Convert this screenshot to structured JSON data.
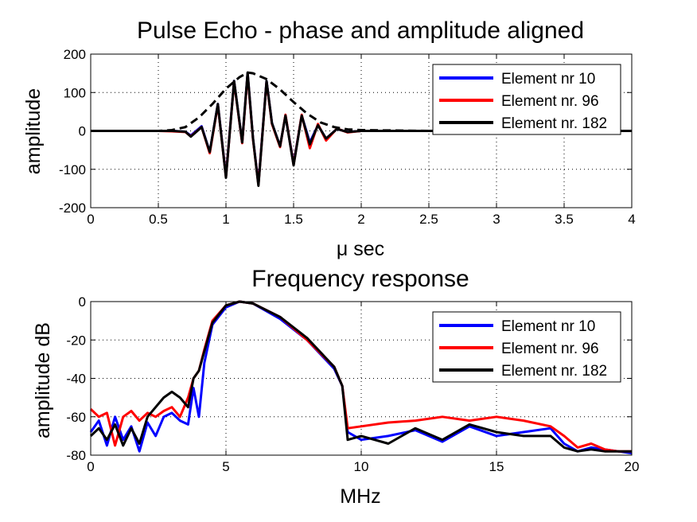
{
  "chart_data": [
    {
      "type": "line",
      "title": "Pulse Echo - phase and amplitude aligned",
      "xlabel_symbol": "μ",
      "xlabel_rest": " sec",
      "ylabel": "amplitude",
      "xlim": [
        0,
        4
      ],
      "ylim": [
        -200,
        200
      ],
      "xticks": [
        0,
        0.5,
        1,
        1.5,
        2,
        2.5,
        3,
        3.5,
        4
      ],
      "xtick_labels": [
        "0",
        "0.5",
        "1",
        "1.5",
        "2",
        "2.5",
        "3",
        "3.5",
        "4"
      ],
      "yticks": [
        -200,
        -100,
        0,
        100,
        200
      ],
      "ytick_labels": [
        "-200",
        "-100",
        "0",
        "100",
        "200"
      ],
      "grid": true,
      "legend_position": "top-right",
      "series": [
        {
          "name": "Element nr 10",
          "color": "#0000ff",
          "x": [
            0,
            0.5,
            0.6,
            0.7,
            0.74,
            0.82,
            0.88,
            0.94,
            1.0,
            1.06,
            1.12,
            1.16,
            1.2,
            1.24,
            1.3,
            1.34,
            1.4,
            1.44,
            1.5,
            1.56,
            1.62,
            1.68,
            1.74,
            1.82,
            1.9,
            2.0,
            2.5,
            3.0,
            4.0
          ],
          "y": [
            0,
            0,
            0,
            -2,
            -12,
            12,
            -55,
            70,
            -118,
            130,
            -30,
            150,
            -20,
            -138,
            130,
            20,
            -40,
            40,
            -85,
            40,
            -30,
            15,
            -20,
            5,
            -3,
            0,
            0,
            0,
            0
          ]
        },
        {
          "name": "Element nr. 96",
          "color": "#ff0000",
          "x": [
            0,
            0.5,
            0.6,
            0.7,
            0.74,
            0.82,
            0.88,
            0.94,
            1.0,
            1.06,
            1.12,
            1.16,
            1.2,
            1.24,
            1.3,
            1.34,
            1.4,
            1.44,
            1.5,
            1.56,
            1.62,
            1.68,
            1.74,
            1.82,
            1.9,
            2.0,
            2.5,
            3.0,
            4.0
          ],
          "y": [
            0,
            0,
            -1,
            -3,
            -14,
            10,
            -58,
            68,
            -120,
            128,
            -32,
            148,
            -22,
            -140,
            128,
            18,
            -42,
            42,
            -88,
            42,
            -45,
            18,
            -25,
            6,
            -4,
            0,
            0,
            0,
            0
          ]
        },
        {
          "name": "Element nr. 182",
          "color": "#000000",
          "x": [
            0,
            0.5,
            0.6,
            0.7,
            0.74,
            0.82,
            0.88,
            0.94,
            1.0,
            1.06,
            1.12,
            1.16,
            1.2,
            1.24,
            1.3,
            1.34,
            1.4,
            1.44,
            1.5,
            1.56,
            1.62,
            1.68,
            1.74,
            1.82,
            1.9,
            2.0,
            2.5,
            3.0,
            4.0
          ],
          "y": [
            0,
            0,
            0,
            -2,
            -15,
            10,
            -55,
            70,
            -122,
            130,
            -30,
            152,
            -20,
            -143,
            130,
            20,
            -40,
            40,
            -90,
            40,
            -35,
            15,
            -20,
            5,
            -3,
            0,
            0,
            0,
            0
          ]
        }
      ],
      "envelope": {
        "color": "#000000",
        "x": [
          0,
          0.5,
          0.6,
          0.7,
          0.8,
          0.9,
          1.0,
          1.1,
          1.16,
          1.2,
          1.3,
          1.4,
          1.5,
          1.6,
          1.7,
          1.8,
          1.9,
          2.0,
          2.5,
          3.0,
          4.0
        ],
        "y": [
          0,
          0,
          2,
          10,
          35,
          70,
          110,
          140,
          152,
          150,
          135,
          108,
          75,
          45,
          22,
          10,
          4,
          2,
          0,
          0,
          0
        ]
      }
    },
    {
      "type": "line",
      "title": "Frequency response",
      "xlabel": "MHz",
      "ylabel": "amplitude dB",
      "xlim": [
        0,
        20
      ],
      "ylim": [
        -80,
        0
      ],
      "xticks": [
        0,
        5,
        10,
        15,
        20
      ],
      "xtick_labels": [
        "0",
        "5",
        "10",
        "15",
        "20"
      ],
      "yticks": [
        -80,
        -60,
        -40,
        -20,
        0
      ],
      "ytick_labels": [
        "-80",
        "-60",
        "-40",
        "-20",
        "0"
      ],
      "grid": true,
      "legend_position": "top-right",
      "series": [
        {
          "name": "Element nr 10",
          "color": "#0000ff",
          "x": [
            0,
            0.3,
            0.6,
            0.9,
            1.2,
            1.5,
            1.8,
            2.1,
            2.4,
            2.7,
            3.0,
            3.3,
            3.6,
            3.8,
            4.0,
            4.2,
            4.5,
            5.0,
            5.5,
            6.0,
            7.0,
            8.0,
            9.0,
            9.3,
            9.5,
            10.0,
            11.0,
            12.0,
            13.0,
            14.0,
            15.0,
            16.0,
            17.0,
            17.5,
            18.0,
            18.5,
            19.0,
            19.5,
            20.0
          ],
          "y": [
            -68,
            -62,
            -75,
            -60,
            -72,
            -65,
            -78,
            -63,
            -70,
            -60,
            -58,
            -62,
            -64,
            -45,
            -60,
            -32,
            -12,
            -3,
            0,
            -1,
            -9,
            -20,
            -35,
            -44,
            -68,
            -72,
            -70,
            -67,
            -73,
            -65,
            -70,
            -68,
            -66,
            -74,
            -78,
            -76,
            -77,
            -78,
            -79
          ]
        },
        {
          "name": "Element nr. 96",
          "color": "#ff0000",
          "x": [
            0,
            0.3,
            0.6,
            0.9,
            1.2,
            1.5,
            1.8,
            2.1,
            2.4,
            2.7,
            3.0,
            3.3,
            3.6,
            3.8,
            4.0,
            4.2,
            4.5,
            5.0,
            5.5,
            6.0,
            7.0,
            8.0,
            9.0,
            9.3,
            9.5,
            10.0,
            11.0,
            12.0,
            13.0,
            14.0,
            15.0,
            16.0,
            17.0,
            17.5,
            18.0,
            18.5,
            19.0,
            19.5,
            20.0
          ],
          "y": [
            -56,
            -60,
            -58,
            -75,
            -60,
            -57,
            -62,
            -58,
            -60,
            -57,
            -55,
            -60,
            -50,
            -40,
            -36,
            -25,
            -10,
            -2,
            0,
            -1,
            -8,
            -20,
            -34,
            -44,
            -66,
            -65,
            -63,
            -62,
            -60,
            -62,
            -60,
            -62,
            -65,
            -70,
            -76,
            -74,
            -77,
            -78,
            -78
          ]
        },
        {
          "name": "Element nr. 182",
          "color": "#000000",
          "x": [
            0,
            0.3,
            0.6,
            0.9,
            1.2,
            1.5,
            1.8,
            2.1,
            2.4,
            2.7,
            3.0,
            3.3,
            3.6,
            3.8,
            4.0,
            4.2,
            4.5,
            5.0,
            5.5,
            6.0,
            7.0,
            8.0,
            9.0,
            9.3,
            9.5,
            10.0,
            11.0,
            12.0,
            13.0,
            14.0,
            15.0,
            16.0,
            17.0,
            17.5,
            18.0,
            18.5,
            19.0,
            19.5,
            20.0
          ],
          "y": [
            -70,
            -66,
            -72,
            -64,
            -75,
            -66,
            -74,
            -60,
            -55,
            -50,
            -47,
            -50,
            -55,
            -40,
            -36,
            -26,
            -11,
            -2,
            0,
            -1,
            -8,
            -19,
            -34,
            -44,
            -72,
            -70,
            -74,
            -66,
            -72,
            -64,
            -68,
            -70,
            -70,
            -76,
            -78,
            -77,
            -78,
            -78,
            -78
          ]
        }
      ]
    }
  ]
}
